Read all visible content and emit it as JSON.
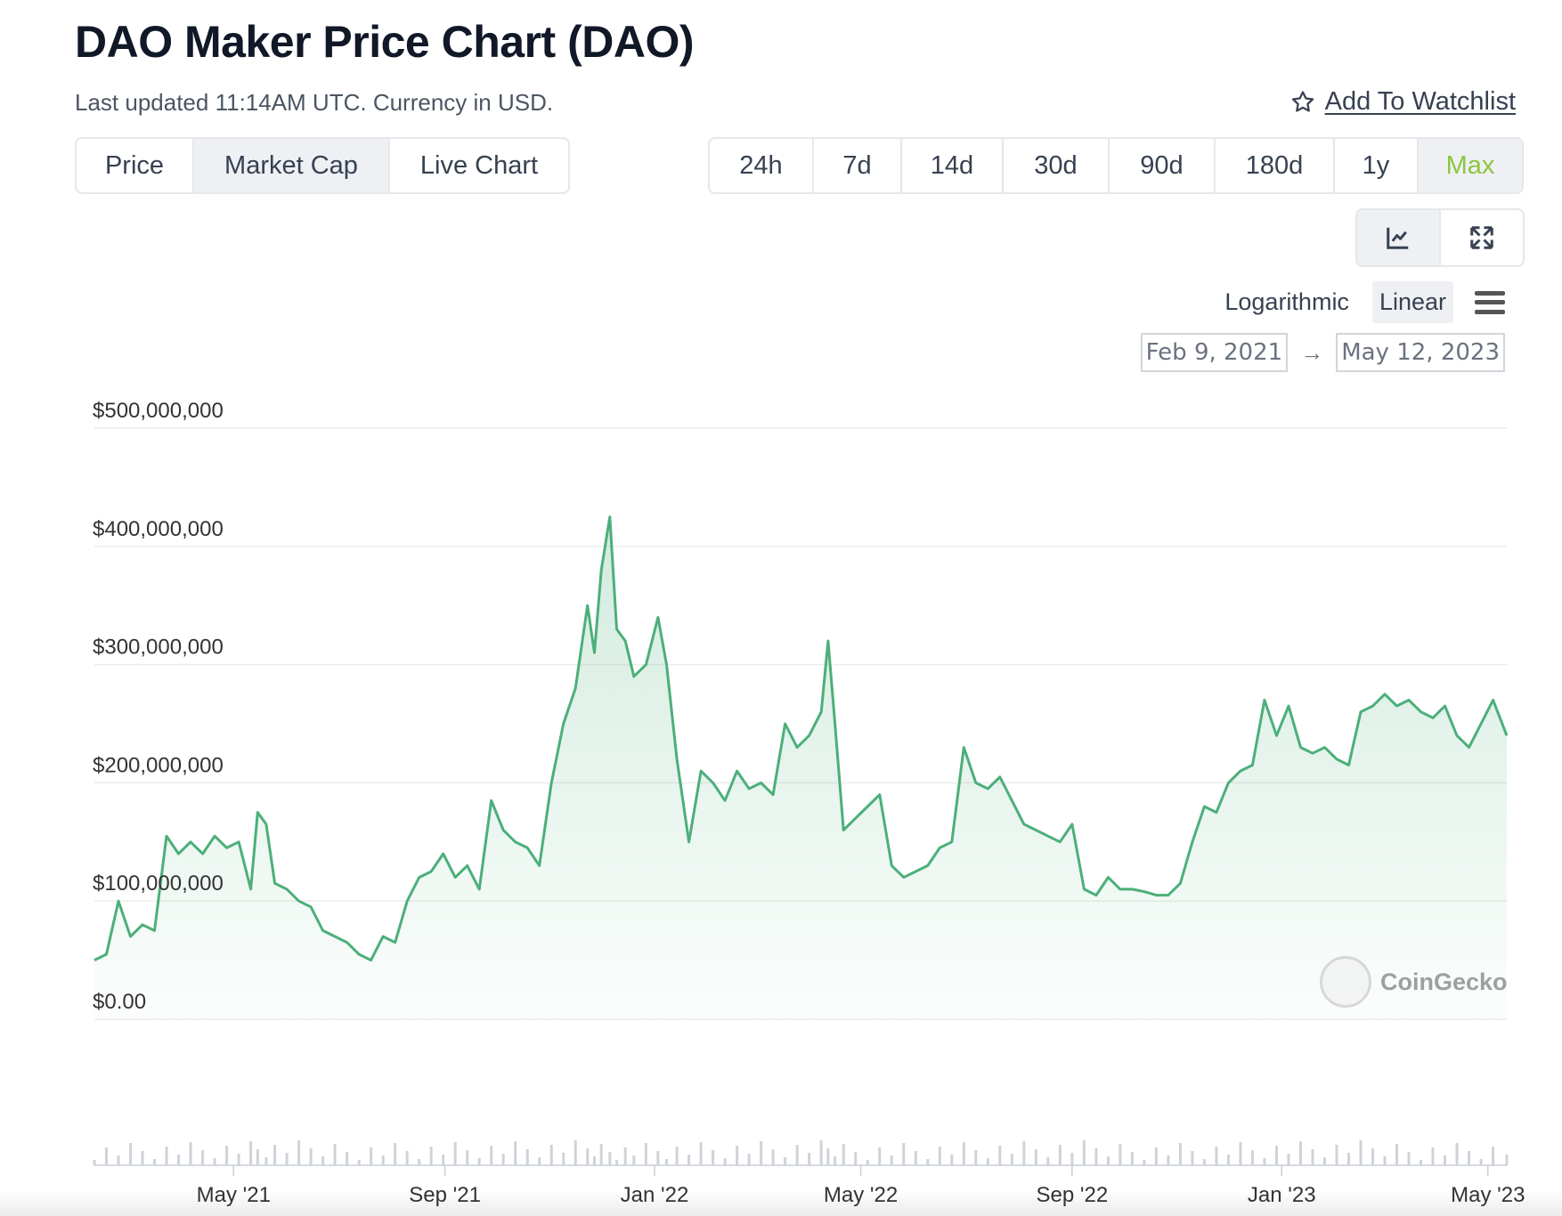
{
  "header": {
    "title": "DAO Maker Price Chart (DAO)",
    "subtitle": "Last updated 11:14AM UTC. Currency in USD.",
    "watchlist_label": "Add To Watchlist"
  },
  "chart_type_tabs": [
    {
      "label": "Price",
      "active": false
    },
    {
      "label": "Market Cap",
      "active": true
    },
    {
      "label": "Live Chart",
      "active": false
    }
  ],
  "range_tabs": [
    {
      "label": "24h",
      "active": false
    },
    {
      "label": "7d",
      "active": false
    },
    {
      "label": "14d",
      "active": false
    },
    {
      "label": "30d",
      "active": false
    },
    {
      "label": "90d",
      "active": false
    },
    {
      "label": "180d",
      "active": false
    },
    {
      "label": "1y",
      "active": false
    },
    {
      "label": "Max",
      "active": true
    }
  ],
  "view_buttons": [
    {
      "icon": "line-chart-icon",
      "active": true
    },
    {
      "icon": "fullscreen-icon",
      "active": false
    }
  ],
  "scale": {
    "options": [
      "Logarithmic",
      "Linear"
    ],
    "selected": "Linear"
  },
  "date_range": {
    "from": "Feb 9, 2021",
    "to": "May 12, 2023",
    "arrow": "→"
  },
  "brand": {
    "name": "CoinGecko",
    "accent": "#8dc63f",
    "line_color": "#4caf7a"
  },
  "chart_data": {
    "type": "area",
    "title": "DAO Maker Price Chart (DAO)",
    "metric": "Market Cap",
    "y_unit": "USD",
    "ylim": [
      0,
      500000000
    ],
    "y_ticks": [
      {
        "value": 0,
        "label": "$0.00"
      },
      {
        "value": 100000000,
        "label": "$100,000,000"
      },
      {
        "value": 200000000,
        "label": "$200,000,000"
      },
      {
        "value": 300000000,
        "label": "$300,000,000"
      },
      {
        "value": 400000000,
        "label": "$400,000,000"
      },
      {
        "value": 500000000,
        "label": "$500,000,000"
      }
    ],
    "x_range": [
      "2021-02-09",
      "2023-05-12"
    ],
    "x_ticks": [
      {
        "date": "2021-05-01",
        "label": "May '21"
      },
      {
        "date": "2021-09-01",
        "label": "Sep '21"
      },
      {
        "date": "2022-01-01",
        "label": "Jan '22"
      },
      {
        "date": "2022-05-01",
        "label": "May '22"
      },
      {
        "date": "2022-09-01",
        "label": "Sep '22"
      },
      {
        "date": "2023-01-01",
        "label": "Jan '23"
      },
      {
        "date": "2023-05-01",
        "label": "May '23"
      }
    ],
    "grid": true,
    "series": [
      {
        "values": [
          [
            "2021-02-09",
            50000000
          ],
          [
            "2021-02-16",
            55000000
          ],
          [
            "2021-02-23",
            100000000
          ],
          [
            "2021-03-02",
            70000000
          ],
          [
            "2021-03-09",
            80000000
          ],
          [
            "2021-03-16",
            75000000
          ],
          [
            "2021-03-23",
            155000000
          ],
          [
            "2021-03-30",
            140000000
          ],
          [
            "2021-04-06",
            150000000
          ],
          [
            "2021-04-13",
            140000000
          ],
          [
            "2021-04-20",
            155000000
          ],
          [
            "2021-04-27",
            145000000
          ],
          [
            "2021-05-04",
            150000000
          ],
          [
            "2021-05-11",
            110000000
          ],
          [
            "2021-05-15",
            175000000
          ],
          [
            "2021-05-20",
            165000000
          ],
          [
            "2021-05-25",
            115000000
          ],
          [
            "2021-06-01",
            110000000
          ],
          [
            "2021-06-08",
            100000000
          ],
          [
            "2021-06-15",
            95000000
          ],
          [
            "2021-06-22",
            75000000
          ],
          [
            "2021-06-29",
            70000000
          ],
          [
            "2021-07-06",
            65000000
          ],
          [
            "2021-07-13",
            55000000
          ],
          [
            "2021-07-20",
            50000000
          ],
          [
            "2021-07-27",
            70000000
          ],
          [
            "2021-08-03",
            65000000
          ],
          [
            "2021-08-10",
            100000000
          ],
          [
            "2021-08-17",
            120000000
          ],
          [
            "2021-08-24",
            125000000
          ],
          [
            "2021-08-31",
            140000000
          ],
          [
            "2021-09-07",
            120000000
          ],
          [
            "2021-09-14",
            130000000
          ],
          [
            "2021-09-21",
            110000000
          ],
          [
            "2021-09-28",
            185000000
          ],
          [
            "2021-10-05",
            160000000
          ],
          [
            "2021-10-12",
            150000000
          ],
          [
            "2021-10-19",
            145000000
          ],
          [
            "2021-10-26",
            130000000
          ],
          [
            "2021-11-02",
            200000000
          ],
          [
            "2021-11-09",
            250000000
          ],
          [
            "2021-11-16",
            280000000
          ],
          [
            "2021-11-23",
            350000000
          ],
          [
            "2021-11-27",
            310000000
          ],
          [
            "2021-12-01",
            380000000
          ],
          [
            "2021-12-06",
            425000000
          ],
          [
            "2021-12-10",
            330000000
          ],
          [
            "2021-12-15",
            320000000
          ],
          [
            "2021-12-20",
            290000000
          ],
          [
            "2021-12-27",
            300000000
          ],
          [
            "2022-01-03",
            340000000
          ],
          [
            "2022-01-08",
            300000000
          ],
          [
            "2022-01-14",
            220000000
          ],
          [
            "2022-01-21",
            150000000
          ],
          [
            "2022-01-28",
            210000000
          ],
          [
            "2022-02-04",
            200000000
          ],
          [
            "2022-02-11",
            185000000
          ],
          [
            "2022-02-18",
            210000000
          ],
          [
            "2022-02-25",
            195000000
          ],
          [
            "2022-03-04",
            200000000
          ],
          [
            "2022-03-11",
            190000000
          ],
          [
            "2022-03-18",
            250000000
          ],
          [
            "2022-03-25",
            230000000
          ],
          [
            "2022-04-01",
            240000000
          ],
          [
            "2022-04-08",
            260000000
          ],
          [
            "2022-04-12",
            320000000
          ],
          [
            "2022-04-16",
            250000000
          ],
          [
            "2022-04-21",
            160000000
          ],
          [
            "2022-04-28",
            170000000
          ],
          [
            "2022-05-05",
            180000000
          ],
          [
            "2022-05-12",
            190000000
          ],
          [
            "2022-05-19",
            130000000
          ],
          [
            "2022-05-26",
            120000000
          ],
          [
            "2022-06-02",
            125000000
          ],
          [
            "2022-06-09",
            130000000
          ],
          [
            "2022-06-16",
            145000000
          ],
          [
            "2022-06-23",
            150000000
          ],
          [
            "2022-06-30",
            230000000
          ],
          [
            "2022-07-07",
            200000000
          ],
          [
            "2022-07-14",
            195000000
          ],
          [
            "2022-07-21",
            205000000
          ],
          [
            "2022-07-28",
            185000000
          ],
          [
            "2022-08-04",
            165000000
          ],
          [
            "2022-08-11",
            160000000
          ],
          [
            "2022-08-18",
            155000000
          ],
          [
            "2022-08-25",
            150000000
          ],
          [
            "2022-09-01",
            165000000
          ],
          [
            "2022-09-08",
            110000000
          ],
          [
            "2022-09-15",
            105000000
          ],
          [
            "2022-09-22",
            120000000
          ],
          [
            "2022-09-29",
            110000000
          ],
          [
            "2022-10-06",
            110000000
          ],
          [
            "2022-10-13",
            108000000
          ],
          [
            "2022-10-20",
            105000000
          ],
          [
            "2022-10-27",
            105000000
          ],
          [
            "2022-11-03",
            115000000
          ],
          [
            "2022-11-10",
            150000000
          ],
          [
            "2022-11-17",
            180000000
          ],
          [
            "2022-11-24",
            175000000
          ],
          [
            "2022-12-01",
            200000000
          ],
          [
            "2022-12-08",
            210000000
          ],
          [
            "2022-12-15",
            215000000
          ],
          [
            "2022-12-22",
            270000000
          ],
          [
            "2022-12-29",
            240000000
          ],
          [
            "2023-01-05",
            265000000
          ],
          [
            "2023-01-12",
            230000000
          ],
          [
            "2023-01-19",
            225000000
          ],
          [
            "2023-01-26",
            230000000
          ],
          [
            "2023-02-02",
            220000000
          ],
          [
            "2023-02-09",
            215000000
          ],
          [
            "2023-02-16",
            260000000
          ],
          [
            "2023-02-23",
            265000000
          ],
          [
            "2023-03-02",
            275000000
          ],
          [
            "2023-03-09",
            265000000
          ],
          [
            "2023-03-16",
            270000000
          ],
          [
            "2023-03-23",
            260000000
          ],
          [
            "2023-03-30",
            255000000
          ],
          [
            "2023-04-06",
            265000000
          ],
          [
            "2023-04-13",
            240000000
          ],
          [
            "2023-04-20",
            230000000
          ],
          [
            "2023-04-27",
            250000000
          ],
          [
            "2023-05-04",
            270000000
          ],
          [
            "2023-05-12",
            240000000
          ]
        ]
      }
    ],
    "volume_bars": true
  }
}
